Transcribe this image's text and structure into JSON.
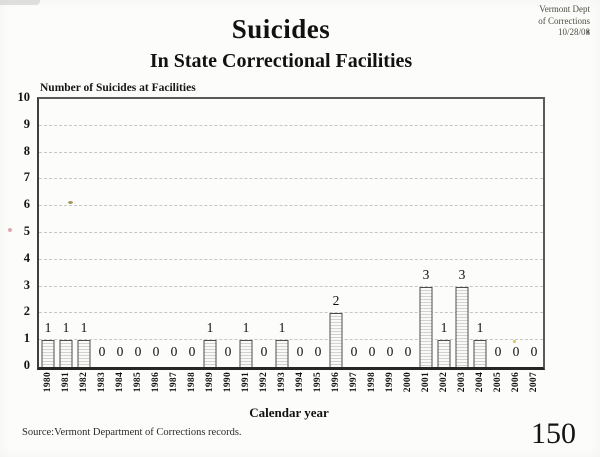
{
  "corner_note": {
    "line1": "Vermont Dept",
    "line2": "of Corrections",
    "line3": "10/28/08"
  },
  "footer": {
    "source": "Source:Vermont Department of Corrections records.",
    "page_number": "150"
  },
  "chart_data": {
    "type": "bar",
    "title": "Suicides",
    "subtitle": "In State Correctional Facilities",
    "ylabel": "Number of Suicides at Facilities",
    "xlabel": "Calendar year",
    "categories": [
      "1980",
      "1981",
      "1982",
      "1983",
      "1984",
      "1985",
      "1986",
      "1987",
      "1988",
      "1989",
      "1990",
      "1991",
      "1992",
      "1993",
      "1994",
      "1995",
      "1996",
      "1997",
      "1998",
      "1999",
      "2000",
      "2001",
      "2002",
      "2003",
      "2004",
      "2005",
      "2006",
      "2007"
    ],
    "values": [
      1,
      1,
      1,
      0,
      0,
      0,
      0,
      0,
      0,
      1,
      0,
      1,
      0,
      1,
      0,
      0,
      2,
      0,
      0,
      0,
      0,
      3,
      1,
      3,
      1,
      0,
      0,
      0
    ],
    "data_labels_shown": true,
    "ylim": [
      0,
      10
    ],
    "ytick_step": 1,
    "grid": "horizontal-dashed",
    "legend": "none",
    "bar_fill_style": "horizontal-stripes",
    "colors": {
      "bar_stripe": "#d2d2d0",
      "bar_background": "#f9f9f7",
      "bar_border": "#4d4d4d",
      "gridline": "#c6c6c2",
      "axis_border": "#3f3f3f",
      "text": "#111111",
      "corner_note_text": "#4c4c45",
      "paper": "#fcfcfa"
    }
  }
}
